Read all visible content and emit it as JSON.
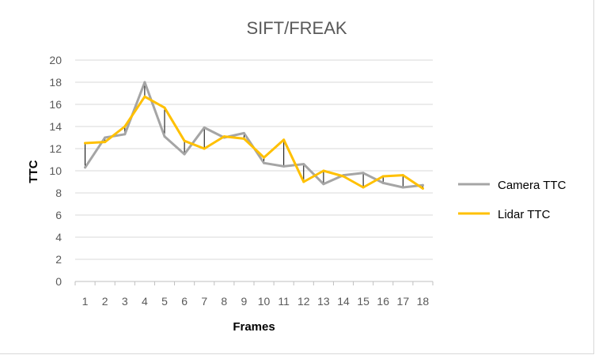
{
  "chart_data": {
    "type": "line",
    "title": "SIFT/FREAK",
    "xlabel": "Frames",
    "ylabel": "TTC",
    "categories": [
      "1",
      "2",
      "3",
      "4",
      "5",
      "6",
      "7",
      "8",
      "9",
      "10",
      "11",
      "12",
      "13",
      "14",
      "15",
      "16",
      "17",
      "18"
    ],
    "yticks": [
      "0",
      "2",
      "4",
      "6",
      "8",
      "10",
      "12",
      "14",
      "16",
      "18",
      "20"
    ],
    "ylim": [
      0,
      20
    ],
    "grid": "horizontal",
    "legend_position": "right",
    "series": [
      {
        "name": "Camera TTC",
        "color": "#a5a5a5",
        "values": [
          10.3,
          13.0,
          13.3,
          18.0,
          13.1,
          11.5,
          13.9,
          13.0,
          13.4,
          10.7,
          10.4,
          10.6,
          8.8,
          9.6,
          9.8,
          8.9,
          8.5,
          8.7
        ]
      },
      {
        "name": "Lidar TTC",
        "color": "#ffc000",
        "values": [
          12.5,
          12.6,
          14.0,
          16.7,
          15.7,
          12.7,
          12.0,
          13.1,
          12.9,
          11.2,
          12.8,
          9.0,
          10.0,
          9.5,
          8.5,
          9.5,
          9.6,
          8.4
        ]
      }
    ],
    "drop_lines": true
  }
}
